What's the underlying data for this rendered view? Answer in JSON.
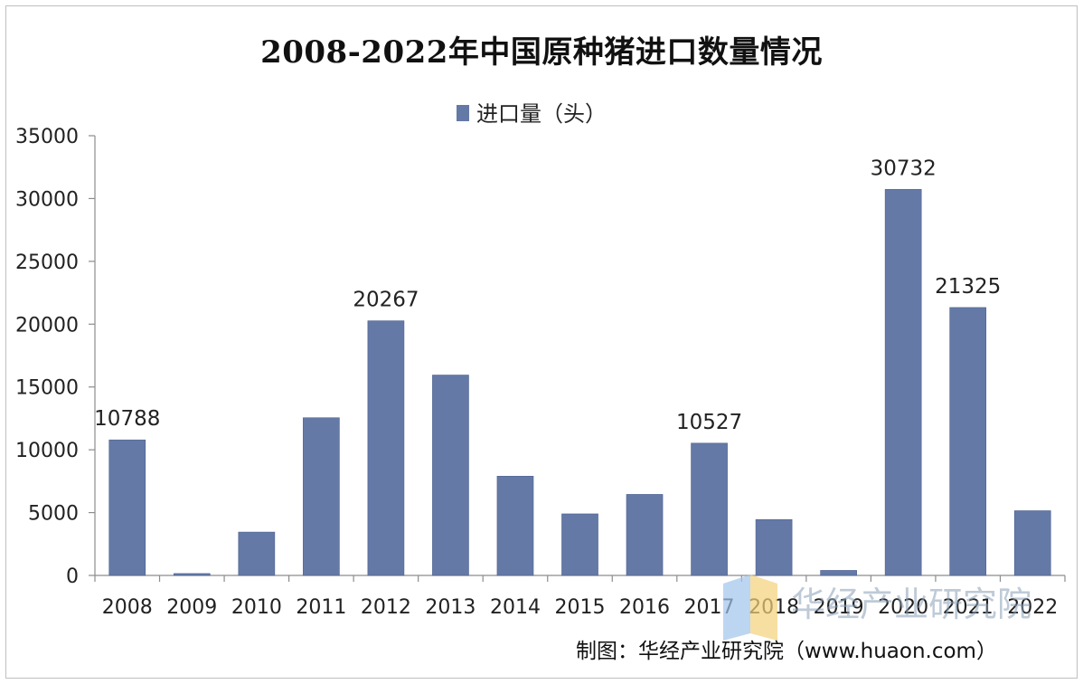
{
  "chart_data": {
    "type": "bar",
    "title": "2008-2022年中国原种猪进口数量情况",
    "categories": [
      "2008",
      "2009",
      "2010",
      "2011",
      "2012",
      "2013",
      "2014",
      "2015",
      "2016",
      "2017",
      "2018",
      "2019",
      "2020",
      "2021",
      "2022"
    ],
    "series": [
      {
        "name": "进口量（头）",
        "values": [
          10788,
          150,
          3450,
          12550,
          20267,
          15950,
          7900,
          4900,
          6450,
          10527,
          4450,
          400,
          30732,
          21325,
          5150
        ],
        "color": "#6479a6"
      }
    ],
    "data_labels": [
      {
        "category": "2008",
        "text": "10788"
      },
      {
        "category": "2012",
        "text": "20267"
      },
      {
        "category": "2017",
        "text": "10527"
      },
      {
        "category": "2020",
        "text": "30732"
      },
      {
        "category": "2021",
        "text": "21325"
      }
    ],
    "yticks": [
      "0",
      "5000",
      "10000",
      "15000",
      "20000",
      "25000",
      "30000",
      "35000"
    ],
    "ylim": [
      0,
      35000
    ],
    "xlabel": "",
    "ylabel": "",
    "grid": false,
    "legend_position": "top-center"
  },
  "source_note": "制图：华经产业研究院（www.huaon.com）",
  "watermark": "华经产业研究院",
  "colors": {
    "bar": "#6479a6",
    "axis": "#8c8c8c",
    "text": "#222222"
  }
}
